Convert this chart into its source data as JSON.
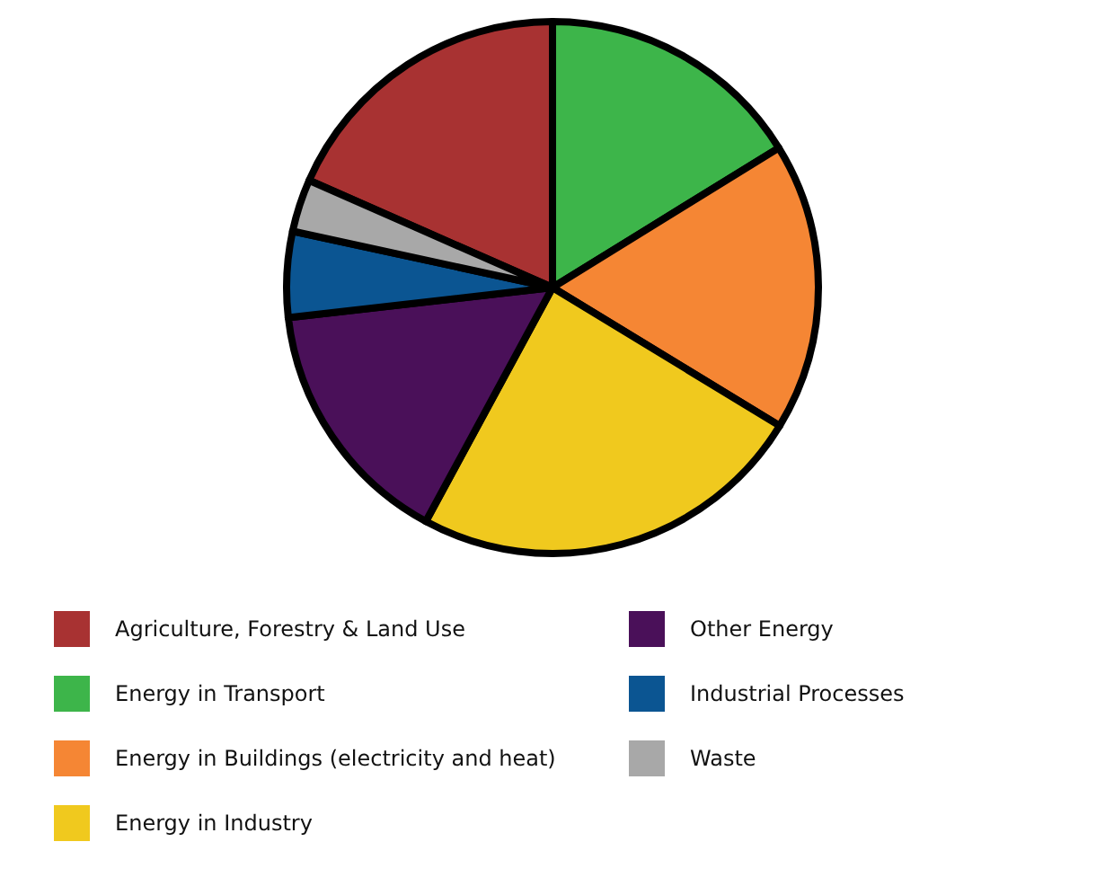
{
  "chart_data": {
    "type": "pie",
    "categories": [
      "Agriculture, Forestry & Land Use",
      "Energy in Transport",
      "Energy in Buildings (electricity and heat)",
      "Energy in Industry",
      "Other Energy",
      "Industrial Processes",
      "Waste"
    ],
    "values": [
      18.4,
      16.2,
      17.5,
      24.2,
      15.3,
      5.2,
      3.2
    ],
    "colors": [
      "#a83232",
      "#3db54a",
      "#f58634",
      "#f0c91e",
      "#4a1059",
      "#0b5592",
      "#a8a8a8"
    ],
    "legend": "bottom"
  }
}
